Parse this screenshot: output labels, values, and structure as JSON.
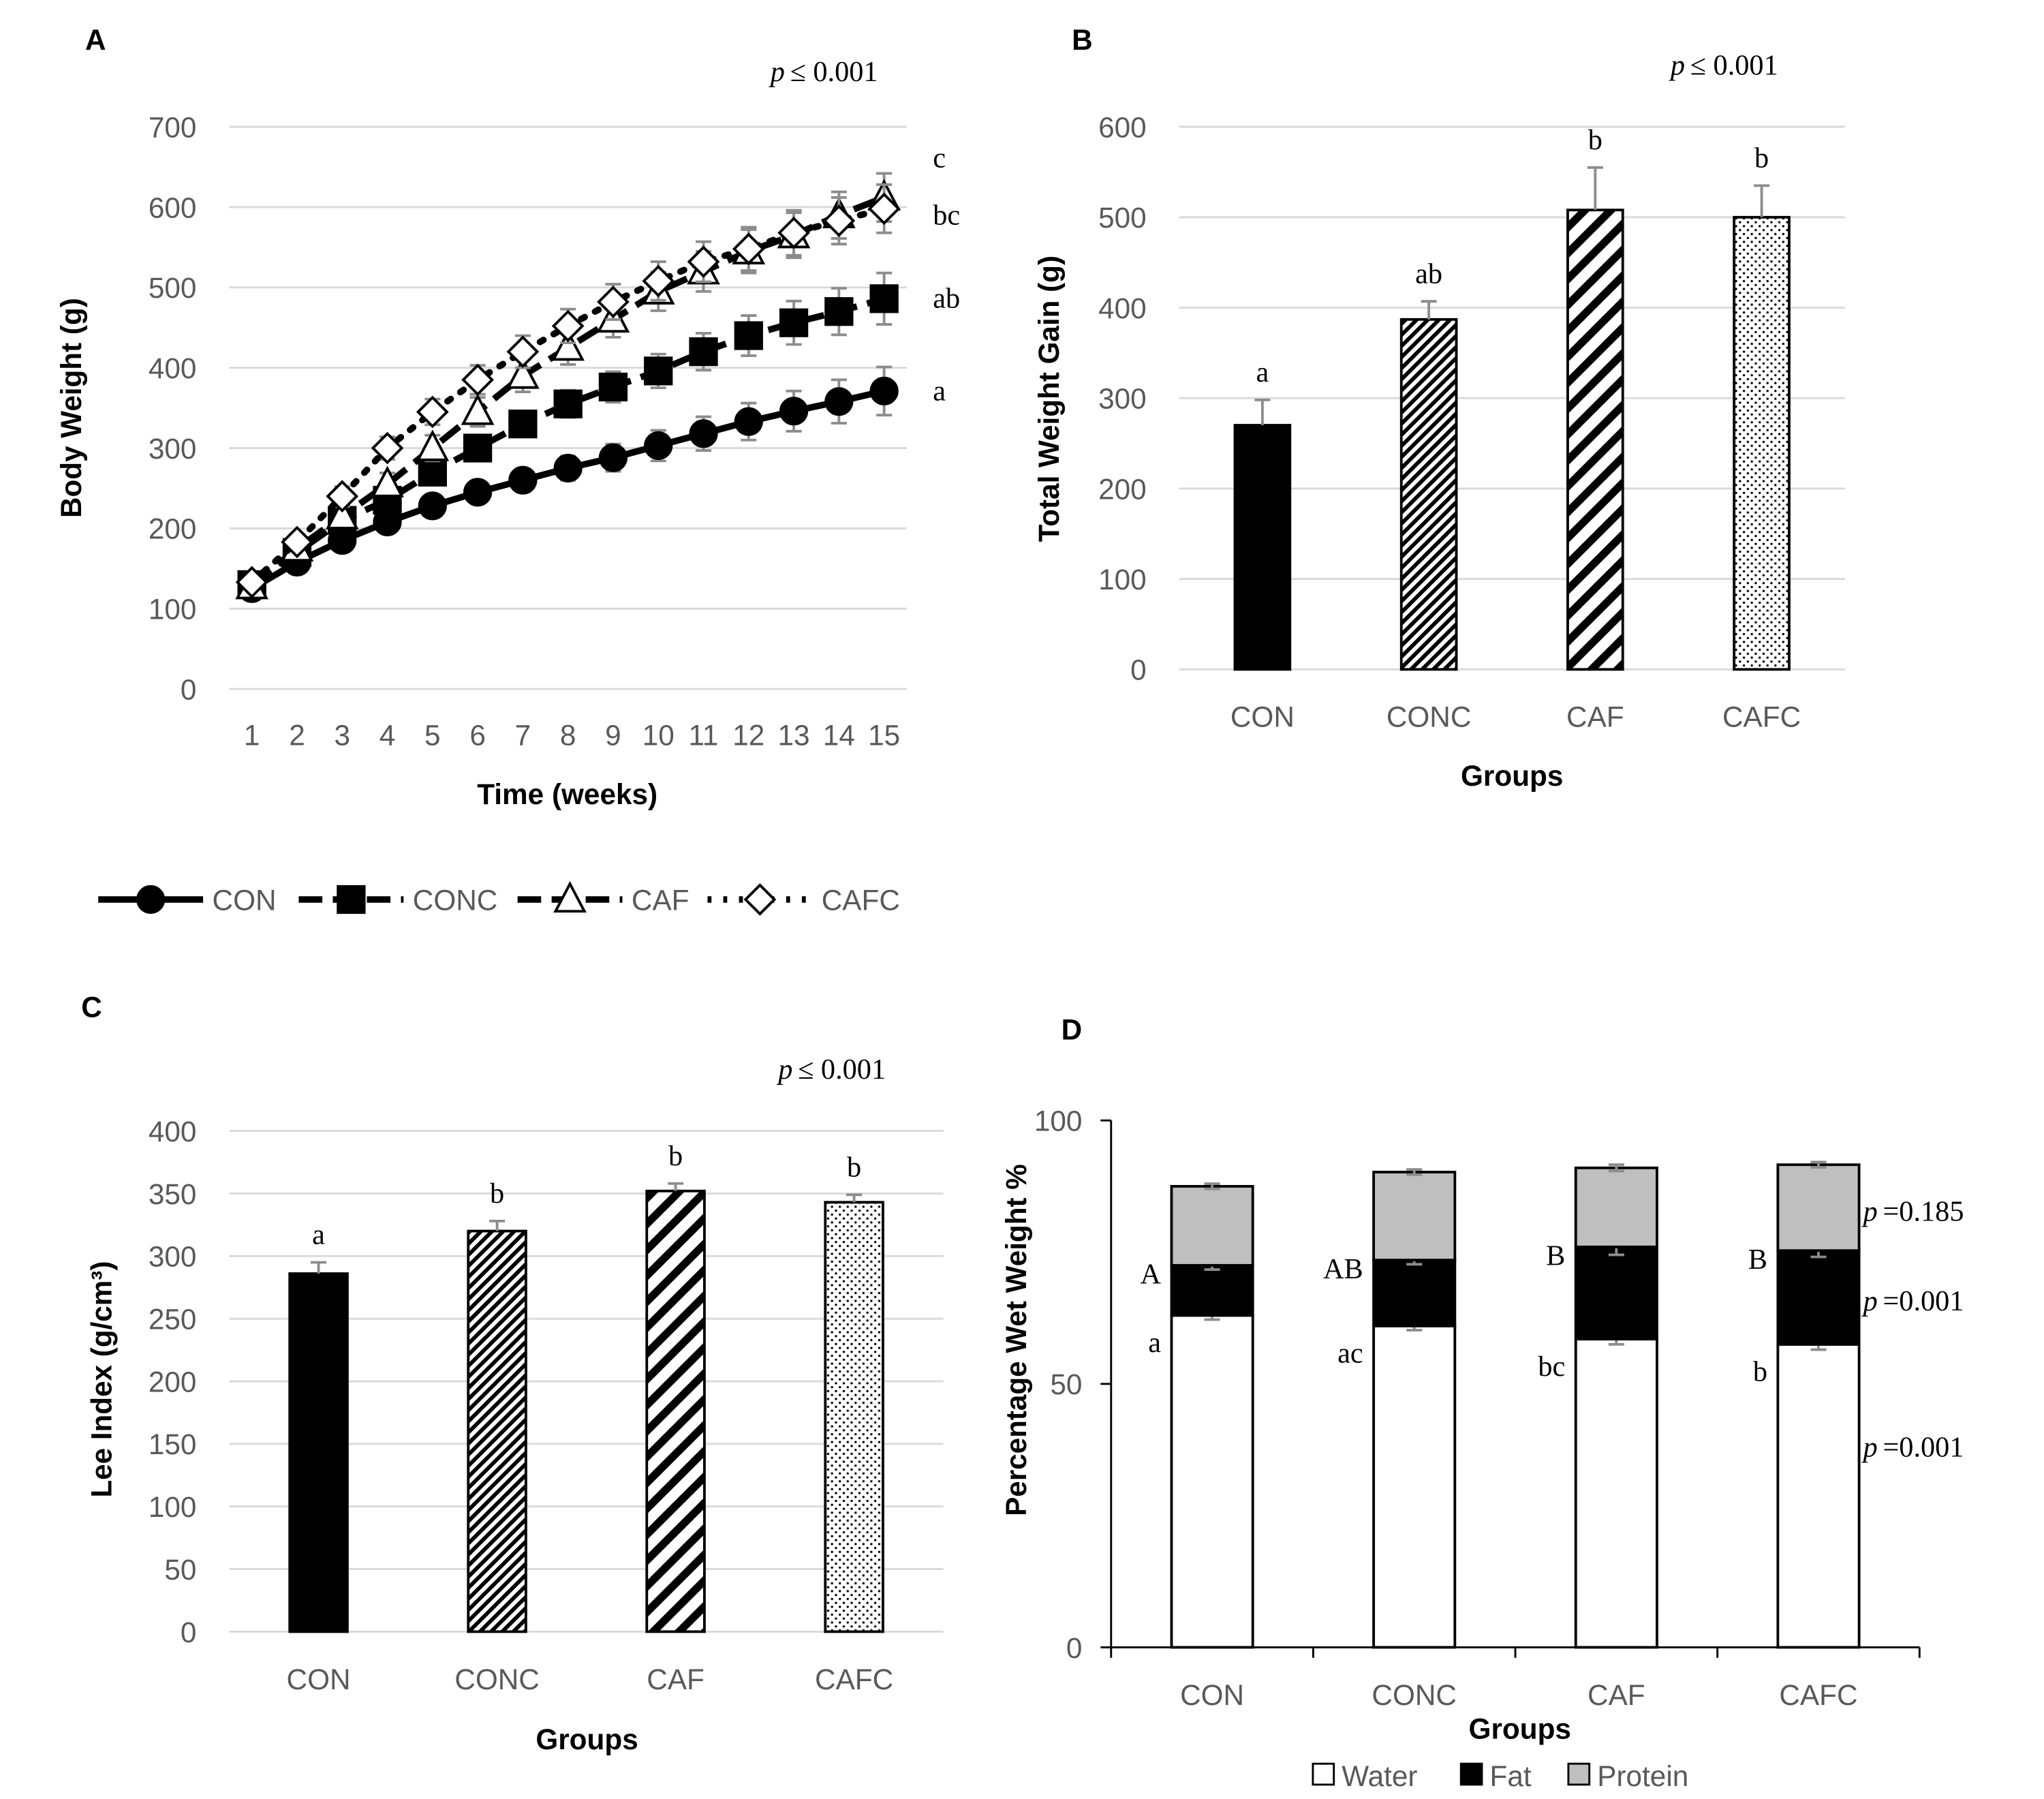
{
  "chart_data": [
    {
      "type": "line",
      "title": "A",
      "annotation": {
        "symbol": "p",
        "text": "≤ 0.001"
      },
      "x_label": "Time (weeks)",
      "y_label": "Body Weight (g)",
      "x": [
        1,
        2,
        3,
        4,
        5,
        6,
        7,
        8,
        9,
        10,
        11,
        12,
        13,
        14,
        15
      ],
      "xlim": [
        0.5,
        15.5
      ],
      "xticks": [
        1,
        2,
        3,
        4,
        5,
        6,
        7,
        8,
        9,
        10,
        11,
        12,
        13,
        14,
        15
      ],
      "ylim": [
        0,
        700
      ],
      "yticks": [
        0,
        100,
        200,
        300,
        400,
        500,
        600,
        700
      ],
      "grid": true,
      "legend": "bottom",
      "series": [
        {
          "name": "CON",
          "color": "#000000",
          "marker": "circle",
          "line_style": "solid",
          "letter": "a",
          "values": [
            125,
            158,
            185,
            208,
            228,
            245,
            260,
            275,
            288,
            303,
            318,
            333,
            346,
            358,
            371
          ],
          "errors": [
            8,
            9,
            10,
            11,
            12,
            13,
            14,
            15,
            17,
            19,
            21,
            23,
            25,
            27,
            30
          ]
        },
        {
          "name": "CONC",
          "color": "#000000",
          "marker": "square",
          "line_style": "dashed",
          "letter": "ab",
          "values": [
            130,
            170,
            210,
            235,
            270,
            300,
            330,
            355,
            376,
            396,
            420,
            440,
            456,
            470,
            486
          ],
          "errors": [
            8,
            9,
            10,
            11,
            12,
            13,
            15,
            17,
            19,
            21,
            23,
            25,
            27,
            29,
            32
          ]
        },
        {
          "name": "CAF",
          "color": "#000000",
          "marker": "triangle",
          "line_style": "dashed",
          "letter": "c",
          "values": [
            128,
            175,
            215,
            255,
            300,
            345,
            390,
            425,
            460,
            495,
            520,
            545,
            565,
            590,
            612
          ],
          "errors": [
            8,
            10,
            12,
            14,
            16,
            18,
            20,
            21,
            22,
            24,
            25,
            27,
            28,
            29,
            30
          ]
        },
        {
          "name": "CAFC",
          "color": "#000000",
          "marker": "diamond",
          "line_style": "dotted",
          "letter": "bc",
          "values": [
            133,
            183,
            240,
            300,
            345,
            385,
            420,
            452,
            482,
            508,
            532,
            548,
            568,
            583,
            598
          ],
          "errors": [
            8,
            10,
            12,
            14,
            16,
            18,
            20,
            21,
            22,
            24,
            25,
            27,
            28,
            29,
            30
          ]
        }
      ]
    },
    {
      "type": "bar",
      "title": "B",
      "annotation": {
        "symbol": "p",
        "text": "≤ 0.001"
      },
      "x_label": "Groups",
      "y_label": "Total Weight Gain (g)",
      "categories": [
        "CON",
        "CONC",
        "CAF",
        "CAFC"
      ],
      "values": [
        270,
        387,
        508,
        500
      ],
      "errors": [
        28,
        20,
        47,
        35
      ],
      "letters": [
        "a",
        "ab",
        "b",
        "b"
      ],
      "patterns": [
        "solid",
        "dense-diagonal",
        "wide-diagonal",
        "dots"
      ],
      "color": "#000000",
      "ylim": [
        0,
        600
      ],
      "yticks": [
        0,
        100,
        200,
        300,
        400,
        500,
        600
      ],
      "grid": true
    },
    {
      "type": "bar",
      "title": "C",
      "annotation": {
        "symbol": "p",
        "text": "≤ 0.001"
      },
      "x_label": "Groups",
      "y_label": "Lee Index (g/cm³)",
      "categories": [
        "CON",
        "CONC",
        "CAF",
        "CAFC"
      ],
      "values": [
        286,
        320,
        352,
        343
      ],
      "errors": [
        9,
        8,
        6,
        6
      ],
      "letters": [
        "a",
        "b",
        "b",
        "b"
      ],
      "patterns": [
        "solid",
        "dense-diagonal",
        "wide-diagonal",
        "dots"
      ],
      "color": "#000000",
      "ylim": [
        0,
        400
      ],
      "yticks": [
        0,
        50,
        100,
        150,
        200,
        250,
        300,
        350,
        400
      ],
      "grid": true
    },
    {
      "type": "stacked_bar",
      "title": "D",
      "x_label": "Groups",
      "y_label": "Percentage Wet Weight %",
      "categories": [
        "CON",
        "CONC",
        "CAF",
        "CAFC"
      ],
      "ylim": [
        0,
        100
      ],
      "yticks": [
        0,
        50,
        100
      ],
      "grid": false,
      "legend": "bottom",
      "series": [
        {
          "name": "Water",
          "color": "#ffffff",
          "values": [
            63,
            61,
            58.5,
            57.5
          ],
          "errors": [
            0.8,
            0.8,
            1,
            1
          ],
          "letters": [
            "a",
            "ac",
            "bc",
            "b"
          ],
          "annotation": {
            "symbol": "p",
            "text": "=0.001"
          }
        },
        {
          "name": "Fat",
          "color": "#000000",
          "values": [
            9.5,
            12.5,
            17.5,
            17.8
          ],
          "errors": [
            0.8,
            0.8,
            1.5,
            1.2
          ],
          "letters": [
            "A",
            "AB",
            "B",
            "B"
          ],
          "annotation": {
            "symbol": "p",
            "text": "=0.001"
          }
        },
        {
          "name": "Protein",
          "color": "#bfbfbf",
          "values": [
            15,
            16.7,
            15,
            16.3
          ],
          "errors": [
            0.5,
            0.5,
            0.6,
            0.5
          ],
          "annotation": {
            "symbol": "p",
            "text": "=0.185"
          }
        }
      ]
    }
  ]
}
